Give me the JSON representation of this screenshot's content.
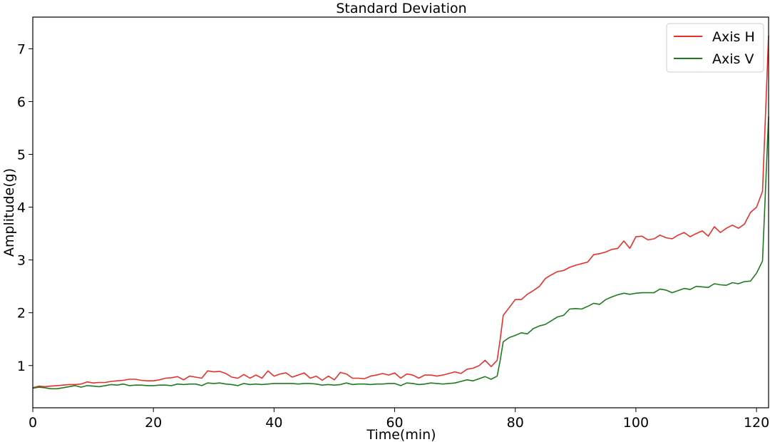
{
  "chart_data": {
    "type": "line",
    "title": "Standard Deviation",
    "xlabel": "Time(min)",
    "ylabel": "Amplitude(g)",
    "xlim": [
      0,
      122
    ],
    "ylim": [
      0.2,
      7.6
    ],
    "xticks": [
      0,
      20,
      40,
      60,
      80,
      100,
      120
    ],
    "yticks": [
      1,
      2,
      3,
      4,
      5,
      6,
      7
    ],
    "grid": false,
    "legend_position": "top-right",
    "series": [
      {
        "name": "Axis H",
        "color": "#e8302a",
        "x": [
          0,
          1,
          2,
          3,
          4,
          5,
          6,
          7,
          8,
          9,
          10,
          11,
          12,
          13,
          14,
          15,
          16,
          17,
          18,
          19,
          20,
          21,
          22,
          23,
          24,
          25,
          26,
          27,
          28,
          29,
          30,
          31,
          32,
          33,
          34,
          35,
          36,
          37,
          38,
          39,
          40,
          41,
          42,
          43,
          44,
          45,
          46,
          47,
          48,
          49,
          50,
          51,
          52,
          53,
          54,
          55,
          56,
          57,
          58,
          59,
          60,
          61,
          62,
          63,
          64,
          65,
          66,
          67,
          68,
          69,
          70,
          71,
          72,
          73,
          74,
          75,
          76,
          77,
          77.5,
          78,
          79,
          80,
          81,
          82,
          83,
          84,
          85,
          86,
          87,
          88,
          89,
          90,
          91,
          92,
          93,
          94,
          95,
          96,
          97,
          98,
          99,
          100,
          101,
          102,
          103,
          104,
          105,
          106,
          107,
          108,
          109,
          110,
          111,
          112,
          113,
          114,
          115,
          116,
          117,
          118,
          119,
          120,
          121,
          122
        ],
        "values": [
          0.58,
          0.61,
          0.6,
          0.61,
          0.62,
          0.63,
          0.64,
          0.64,
          0.65,
          0.69,
          0.67,
          0.68,
          0.68,
          0.7,
          0.71,
          0.72,
          0.74,
          0.74,
          0.72,
          0.71,
          0.71,
          0.73,
          0.76,
          0.77,
          0.79,
          0.73,
          0.8,
          0.78,
          0.76,
          0.9,
          0.88,
          0.89,
          0.85,
          0.78,
          0.76,
          0.83,
          0.76,
          0.82,
          0.76,
          0.9,
          0.8,
          0.84,
          0.86,
          0.78,
          0.82,
          0.86,
          0.76,
          0.8,
          0.72,
          0.8,
          0.73,
          0.87,
          0.84,
          0.76,
          0.76,
          0.75,
          0.8,
          0.82,
          0.85,
          0.82,
          0.86,
          0.76,
          0.84,
          0.82,
          0.76,
          0.82,
          0.82,
          0.8,
          0.82,
          0.85,
          0.88,
          0.85,
          0.93,
          0.95,
          1.0,
          1.1,
          0.98,
          1.1,
          1.5,
          1.95,
          2.1,
          2.25,
          2.25,
          2.35,
          2.42,
          2.5,
          2.65,
          2.72,
          2.78,
          2.8,
          2.86,
          2.9,
          2.93,
          2.96,
          3.1,
          3.12,
          3.15,
          3.2,
          3.22,
          3.36,
          3.22,
          3.44,
          3.45,
          3.38,
          3.4,
          3.47,
          3.42,
          3.4,
          3.47,
          3.52,
          3.44,
          3.5,
          3.55,
          3.45,
          3.63,
          3.52,
          3.6,
          3.66,
          3.6,
          3.68,
          3.9,
          4.0,
          4.3,
          7.25
        ]
      },
      {
        "name": "Axis V",
        "color": "#1f7a1f",
        "x": [
          0,
          1,
          2,
          3,
          4,
          5,
          6,
          7,
          8,
          9,
          10,
          11,
          12,
          13,
          14,
          15,
          16,
          17,
          18,
          19,
          20,
          21,
          22,
          23,
          24,
          25,
          26,
          27,
          28,
          29,
          30,
          31,
          32,
          33,
          34,
          35,
          36,
          37,
          38,
          39,
          40,
          41,
          42,
          43,
          44,
          45,
          46,
          47,
          48,
          49,
          50,
          51,
          52,
          53,
          54,
          55,
          56,
          57,
          58,
          59,
          60,
          61,
          62,
          63,
          64,
          65,
          66,
          67,
          68,
          69,
          70,
          71,
          72,
          73,
          74,
          75,
          76,
          77,
          77.5,
          78,
          79,
          80,
          81,
          82,
          83,
          84,
          85,
          86,
          87,
          88,
          89,
          90,
          91,
          92,
          93,
          94,
          95,
          96,
          97,
          98,
          99,
          100,
          101,
          102,
          103,
          104,
          105,
          106,
          107,
          108,
          109,
          110,
          111,
          112,
          113,
          114,
          115,
          116,
          117,
          118,
          119,
          120,
          121,
          122
        ],
        "values": [
          0.57,
          0.59,
          0.58,
          0.56,
          0.56,
          0.58,
          0.6,
          0.62,
          0.59,
          0.62,
          0.61,
          0.6,
          0.62,
          0.64,
          0.63,
          0.65,
          0.62,
          0.63,
          0.63,
          0.62,
          0.62,
          0.63,
          0.63,
          0.62,
          0.65,
          0.64,
          0.65,
          0.65,
          0.62,
          0.67,
          0.66,
          0.67,
          0.65,
          0.64,
          0.62,
          0.66,
          0.64,
          0.65,
          0.64,
          0.65,
          0.66,
          0.66,
          0.66,
          0.66,
          0.65,
          0.66,
          0.66,
          0.65,
          0.63,
          0.64,
          0.63,
          0.64,
          0.67,
          0.64,
          0.65,
          0.65,
          0.64,
          0.65,
          0.65,
          0.66,
          0.66,
          0.62,
          0.67,
          0.66,
          0.64,
          0.65,
          0.67,
          0.66,
          0.65,
          0.66,
          0.67,
          0.7,
          0.73,
          0.71,
          0.75,
          0.79,
          0.74,
          0.8,
          1.1,
          1.45,
          1.53,
          1.57,
          1.62,
          1.6,
          1.7,
          1.75,
          1.78,
          1.85,
          1.92,
          1.95,
          2.07,
          2.08,
          2.07,
          2.12,
          2.18,
          2.16,
          2.25,
          2.3,
          2.34,
          2.37,
          2.35,
          2.37,
          2.38,
          2.38,
          2.38,
          2.45,
          2.43,
          2.38,
          2.42,
          2.46,
          2.44,
          2.5,
          2.49,
          2.48,
          2.55,
          2.53,
          2.52,
          2.57,
          2.55,
          2.59,
          2.6,
          2.75,
          2.98,
          5.72
        ]
      }
    ]
  }
}
